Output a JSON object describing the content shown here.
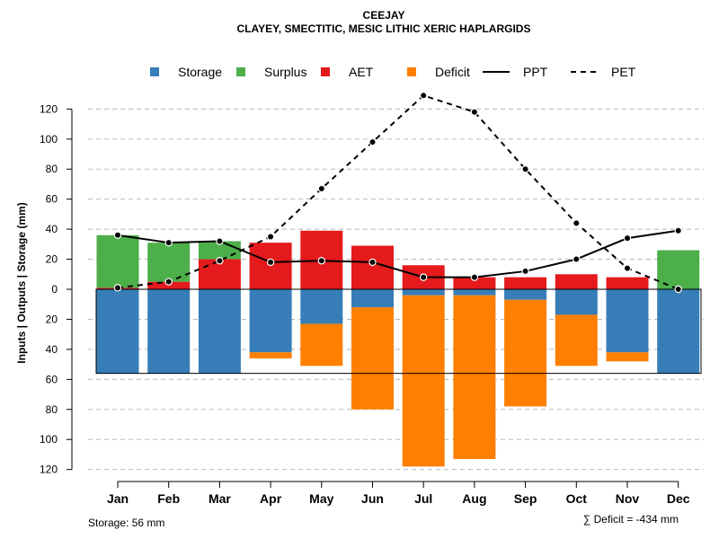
{
  "chart_data": {
    "type": "bar",
    "title": "CEEJAY",
    "subtitle": "CLAYEY, SMECTITIC, MESIC LITHIC XERIC HAPLARGIDS",
    "ylabel": "Inputs | Outputs | Storage    (mm)",
    "categories": [
      "Jan",
      "Feb",
      "Mar",
      "Apr",
      "May",
      "Jun",
      "Jul",
      "Aug",
      "Sep",
      "Oct",
      "Nov",
      "Dec"
    ],
    "ylim": [
      -120,
      130
    ],
    "yticks": [
      120,
      100,
      80,
      60,
      40,
      20,
      0,
      -20,
      -40,
      -60,
      -80,
      -100,
      -120
    ],
    "ytick_labels": [
      "120",
      "100",
      "80",
      "60",
      "40",
      "20",
      "0",
      "20",
      "40",
      "60",
      "80",
      "100",
      "120"
    ],
    "grid": true,
    "legend": [
      {
        "name": "Storage",
        "color": "#377eb8",
        "kind": "box"
      },
      {
        "name": "Surplus",
        "color": "#4daf4a",
        "kind": "box"
      },
      {
        "name": "AET",
        "color": "#e41a1c",
        "kind": "box"
      },
      {
        "name": "Deficit",
        "color": "#ff7f00",
        "kind": "box"
      },
      {
        "name": "PPT",
        "color": "#000000",
        "kind": "solid"
      },
      {
        "name": "PET",
        "color": "#000000",
        "kind": "dashed"
      }
    ],
    "storage_capacity": 56,
    "series": [
      {
        "name": "Storage",
        "color": "#377eb8",
        "values": [
          -56,
          -56,
          -56,
          -42,
          -23,
          -12,
          -4,
          -4,
          -7,
          -17,
          -42,
          -56
        ]
      },
      {
        "name": "Surplus",
        "color": "#4daf4a",
        "values": [
          35,
          26,
          12,
          0,
          0,
          0,
          0,
          0,
          0,
          0,
          0,
          26
        ]
      },
      {
        "name": "AET",
        "color": "#e41a1c",
        "values": [
          1,
          5,
          20,
          31,
          39,
          29,
          16,
          8,
          8,
          10,
          8,
          0
        ]
      },
      {
        "name": "Deficit",
        "color": "#ff7f00",
        "values": [
          0,
          0,
          0,
          -4,
          -28,
          -68,
          -114,
          -109,
          -71,
          -34,
          -6,
          0
        ]
      },
      {
        "name": "PPT",
        "color": "#000000",
        "values": [
          36,
          31,
          32,
          18,
          19,
          18,
          8,
          8,
          12,
          20,
          34,
          39
        ]
      },
      {
        "name": "PET",
        "color": "#000000",
        "values": [
          1,
          5,
          19,
          35,
          67,
          98,
          129,
          118,
          80,
          44,
          14,
          0
        ]
      }
    ]
  },
  "notes": {
    "storage": "Storage: 56 mm",
    "deficit": "∑ Deficit = -434 mm"
  }
}
